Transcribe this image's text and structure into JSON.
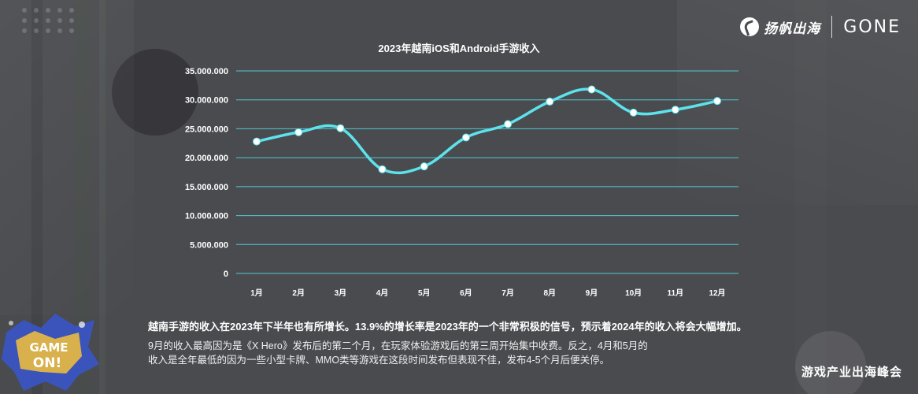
{
  "brand": {
    "name": "扬帆出海",
    "partner": "GONE",
    "footer": "游戏产业出海峰会",
    "badge_line1": "GAME",
    "badge_line2": "ON!"
  },
  "summary": "越南手游的收入在2023年下半年也有所增长。13.9%的增长率是2023年的一个非常积极的信号，预示着2024年的收入将会大幅增加。",
  "detail_lines": [
    "9月的收入最高因为是《X Hero》发布后的第二个月，在玩家体验游戏后的第三周开始集中收费。反之，4月和5月的",
    "收入是全年最低的因为一些小型卡牌、MMO类等游戏在这段时间发布但表现不佳，发布4-5个月后便关停。"
  ],
  "chart_data": {
    "type": "line",
    "title": "2023年越南iOS和Android手游收入",
    "categories": [
      "1月",
      "2月",
      "3月",
      "4月",
      "5月",
      "6月",
      "7月",
      "8月",
      "9月",
      "10月",
      "11月",
      "12月"
    ],
    "series": [
      {
        "values": [
          22800000,
          24400000,
          25100000,
          18000000,
          18500000,
          23500000,
          25800000,
          29700000,
          31800000,
          27800000,
          28300000,
          29800000
        ]
      }
    ],
    "y_ticks": [
      "0",
      "5.000.000",
      "10.000.000",
      "15.000.000",
      "20.000.000",
      "25.000.000",
      "30.000.000",
      "35.000.000"
    ],
    "ylim": [
      0,
      35000000
    ],
    "grid": true,
    "line_color": "#5de3ec",
    "grid_color": "#4fc9d3",
    "marker_color": "#ffffff"
  }
}
